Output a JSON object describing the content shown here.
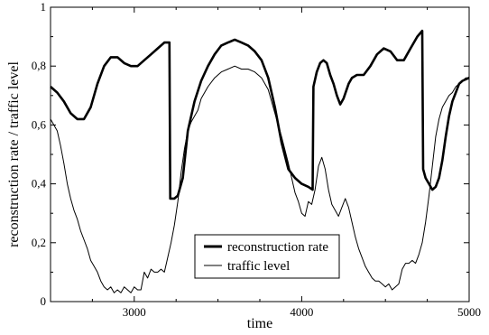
{
  "chart_data": {
    "type": "line",
    "xlabel": "time",
    "ylabel": "reconstruction rate / traffic level",
    "xlim": [
      2500,
      5000
    ],
    "ylim": [
      0,
      1
    ],
    "x_ticks": [
      3000,
      4000,
      5000
    ],
    "y_ticks": [
      0,
      0.2,
      0.4,
      0.6,
      0.8,
      1
    ],
    "y_tick_labels": [
      "0",
      "0,2",
      "0,4",
      "0,6",
      "0,8",
      "1"
    ],
    "grid": false,
    "legend_position": "bottom-center",
    "series": [
      {
        "name": "reconstruction rate",
        "color": "#000000",
        "style": "thick",
        "x": [
          2500,
          2540,
          2580,
          2620,
          2660,
          2700,
          2740,
          2780,
          2820,
          2860,
          2900,
          2940,
          2980,
          3020,
          3060,
          3100,
          3140,
          3180,
          3210,
          3215,
          3240,
          3260,
          3290,
          3320,
          3360,
          3400,
          3440,
          3480,
          3520,
          3560,
          3600,
          3640,
          3680,
          3720,
          3760,
          3800,
          3840,
          3880,
          3920,
          3960,
          4000,
          4040,
          4065,
          4070,
          4090,
          4110,
          4130,
          4150,
          4170,
          4190,
          4210,
          4230,
          4250,
          4280,
          4300,
          4330,
          4370,
          4410,
          4450,
          4490,
          4530,
          4570,
          4610,
          4650,
          4690,
          4720,
          4725,
          4740,
          4760,
          4780,
          4800,
          4820,
          4840,
          4860,
          4880,
          4900,
          4920,
          4940,
          4960,
          5000
        ],
        "y": [
          0.73,
          0.71,
          0.68,
          0.64,
          0.62,
          0.62,
          0.66,
          0.74,
          0.8,
          0.83,
          0.83,
          0.81,
          0.8,
          0.8,
          0.82,
          0.84,
          0.86,
          0.88,
          0.88,
          0.35,
          0.35,
          0.36,
          0.42,
          0.58,
          0.68,
          0.75,
          0.8,
          0.84,
          0.87,
          0.88,
          0.89,
          0.88,
          0.87,
          0.85,
          0.82,
          0.76,
          0.66,
          0.54,
          0.45,
          0.42,
          0.4,
          0.39,
          0.38,
          0.73,
          0.78,
          0.81,
          0.82,
          0.81,
          0.77,
          0.74,
          0.7,
          0.67,
          0.69,
          0.74,
          0.76,
          0.77,
          0.77,
          0.8,
          0.84,
          0.86,
          0.85,
          0.82,
          0.82,
          0.86,
          0.9,
          0.92,
          0.45,
          0.42,
          0.4,
          0.38,
          0.39,
          0.42,
          0.48,
          0.56,
          0.63,
          0.68,
          0.71,
          0.74,
          0.75,
          0.76
        ]
      },
      {
        "name": "traffic level",
        "color": "#000000",
        "style": "thin",
        "x": [
          2500,
          2520,
          2540,
          2560,
          2580,
          2600,
          2620,
          2640,
          2660,
          2680,
          2700,
          2720,
          2740,
          2760,
          2780,
          2800,
          2820,
          2840,
          2860,
          2880,
          2900,
          2920,
          2940,
          2960,
          2980,
          3000,
          3020,
          3040,
          3060,
          3080,
          3100,
          3120,
          3140,
          3160,
          3180,
          3200,
          3220,
          3240,
          3260,
          3280,
          3300,
          3320,
          3340,
          3360,
          3380,
          3400,
          3440,
          3480,
          3520,
          3560,
          3600,
          3640,
          3680,
          3720,
          3760,
          3800,
          3840,
          3880,
          3920,
          3940,
          3960,
          3980,
          4000,
          4020,
          4040,
          4060,
          4080,
          4100,
          4120,
          4140,
          4160,
          4180,
          4200,
          4220,
          4240,
          4260,
          4280,
          4300,
          4320,
          4340,
          4360,
          4380,
          4400,
          4420,
          4440,
          4460,
          4480,
          4500,
          4520,
          4540,
          4560,
          4580,
          4600,
          4620,
          4640,
          4660,
          4680,
          4700,
          4720,
          4740,
          4760,
          4780,
          4800,
          4820,
          4840,
          4860,
          4880,
          4900,
          4920,
          4940,
          4960,
          4980,
          5000
        ],
        "y": [
          0.62,
          0.6,
          0.58,
          0.53,
          0.47,
          0.4,
          0.35,
          0.31,
          0.28,
          0.24,
          0.21,
          0.18,
          0.14,
          0.12,
          0.1,
          0.07,
          0.05,
          0.04,
          0.05,
          0.03,
          0.04,
          0.03,
          0.05,
          0.04,
          0.03,
          0.05,
          0.04,
          0.04,
          0.1,
          0.08,
          0.11,
          0.1,
          0.1,
          0.11,
          0.1,
          0.15,
          0.2,
          0.26,
          0.34,
          0.44,
          0.52,
          0.58,
          0.61,
          0.63,
          0.65,
          0.69,
          0.73,
          0.76,
          0.78,
          0.79,
          0.8,
          0.79,
          0.79,
          0.78,
          0.76,
          0.72,
          0.64,
          0.56,
          0.47,
          0.42,
          0.37,
          0.34,
          0.3,
          0.29,
          0.34,
          0.33,
          0.38,
          0.46,
          0.49,
          0.45,
          0.38,
          0.33,
          0.31,
          0.29,
          0.32,
          0.35,
          0.32,
          0.27,
          0.22,
          0.18,
          0.15,
          0.12,
          0.1,
          0.08,
          0.07,
          0.07,
          0.06,
          0.05,
          0.06,
          0.04,
          0.05,
          0.06,
          0.11,
          0.13,
          0.13,
          0.14,
          0.13,
          0.16,
          0.2,
          0.27,
          0.36,
          0.46,
          0.56,
          0.62,
          0.66,
          0.68,
          0.7,
          0.71,
          0.73,
          0.74,
          0.75,
          0.76,
          0.76
        ]
      }
    ]
  }
}
